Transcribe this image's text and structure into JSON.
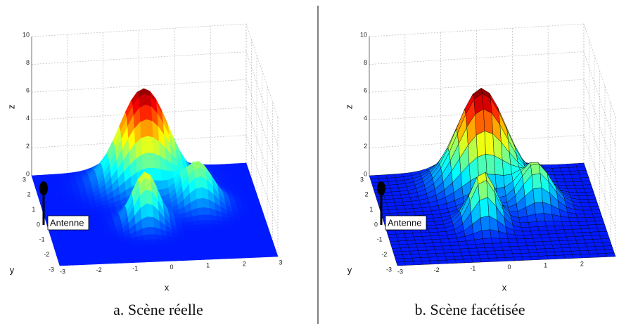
{
  "panels": [
    {
      "caption": "a. Scène réelle",
      "axis_labels": {
        "x": "x",
        "y": "y",
        "z": "z"
      },
      "zticks": [
        "0",
        "2",
        "4",
        "6",
        "8",
        "10"
      ],
      "xticks": [
        "-3",
        "-2",
        "-1",
        "0",
        "1",
        "2",
        "3"
      ],
      "yticks": [
        "3",
        "2",
        "1",
        "0",
        "-1",
        "-2",
        "-3"
      ],
      "annotation": "Antenne"
    },
    {
      "caption": "b. Scène facétisée",
      "axis_labels": {
        "x": "x",
        "y": "y",
        "z": "z"
      },
      "zticks": [
        "0",
        "2",
        "4",
        "6",
        "8",
        "10"
      ],
      "xticks": [
        "-3",
        "-2",
        "-1",
        "0",
        "1",
        "2"
      ],
      "yticks": [
        "3",
        "2",
        "1",
        "0",
        "-1",
        "-2",
        "-3"
      ],
      "annotation": "Antenne"
    }
  ]
}
